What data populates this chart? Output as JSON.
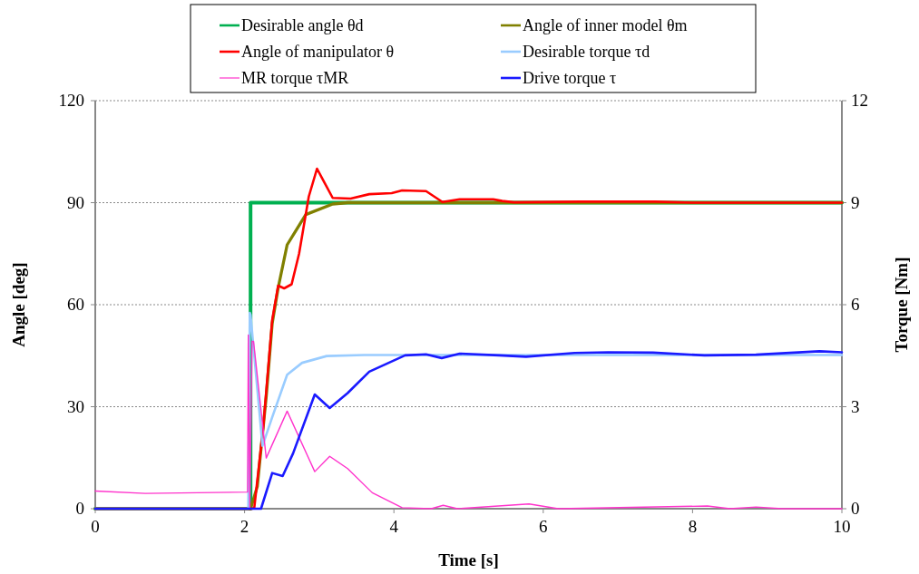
{
  "chart_data": {
    "type": "line",
    "xlabel": "Time [s]",
    "ylabel": "Angle [deg]",
    "y2label": "Torque [Nm]",
    "xlim": [
      0,
      10
    ],
    "xticks": [
      0,
      2,
      4,
      6,
      8,
      10
    ],
    "ylim": [
      0,
      120
    ],
    "yticks": [
      0,
      30,
      60,
      90,
      120
    ],
    "y2lim": [
      0,
      12
    ],
    "y2ticks": [
      0,
      3,
      6,
      9,
      12
    ],
    "grid": "y",
    "legend": "top",
    "line_style": "solid",
    "marker": "none",
    "series": [
      {
        "name": "Desirable angle θd",
        "color": "#00b050",
        "x": [
          0,
          2.08,
          2.08,
          10
        ],
        "values": [
          0,
          0,
          90,
          90
        ]
      },
      {
        "name": "Angle of inner model θm",
        "color": "#808000",
        "x": [
          0,
          2.08,
          2.17,
          2.29,
          2.37,
          2.45,
          2.57,
          2.82,
          3.18,
          3.38,
          10
        ],
        "values": [
          0,
          0,
          6.5,
          33,
          54.5,
          65,
          77.6,
          86.5,
          89.6,
          90,
          90
        ]
      },
      {
        "name": "Angle of manipulator θ",
        "color": "#ff0000",
        "x": [
          0,
          2.1,
          2.13,
          2.25,
          2.37,
          2.45,
          2.53,
          2.63,
          2.73,
          2.86,
          2.97,
          3.06,
          3.18,
          3.42,
          3.67,
          3.97,
          4.11,
          4.43,
          4.65,
          4.88,
          5.33,
          5.45,
          5.61,
          6.5,
          7.5,
          8,
          10
        ],
        "values": [
          0,
          0,
          0.3,
          24,
          55.5,
          65.6,
          64.8,
          66,
          75,
          91.8,
          100,
          96.3,
          91.4,
          91.2,
          92.5,
          92.8,
          93.6,
          93.4,
          90.2,
          91,
          91,
          90.5,
          90.1,
          90.3,
          90.3,
          90,
          90
        ]
      },
      {
        "name": "Desirable torque τd",
        "color": "#99ccff",
        "axis": "y2",
        "x": [
          0,
          2.05,
          2.07,
          2.08,
          2.24,
          2.37,
          2.57,
          2.77,
          3.1,
          3.6,
          10
        ],
        "values": [
          0,
          0,
          5.76,
          5.7,
          1.85,
          2.69,
          3.94,
          4.29,
          4.49,
          4.52,
          4.52
        ]
      },
      {
        "name": "MR torque τMR",
        "color": "#ff33cc",
        "axis": "y2",
        "x": [
          0,
          0.67,
          2.04,
          2.05,
          2.07,
          2.1,
          2.12,
          2.29,
          2.57,
          2.94,
          3.14,
          3.38,
          3.71,
          4.11,
          4.5,
          4.66,
          4.85,
          5.81,
          6.2,
          8.2,
          8.5,
          8.85,
          9.2,
          10
        ],
        "values": [
          0.52,
          0.45,
          0.49,
          5.11,
          0,
          4.92,
          4.92,
          1.49,
          2.87,
          1.09,
          1.54,
          1.18,
          0.47,
          0.03,
          0,
          0.1,
          0,
          0.14,
          0,
          0.08,
          0,
          0.05,
          0,
          0
        ]
      },
      {
        "name": "Drive torque τ",
        "color": "#1a1aff",
        "axis": "y2",
        "x": [
          0,
          2.22,
          2.37,
          2.51,
          2.65,
          2.94,
          3.14,
          3.38,
          3.67,
          4.15,
          4.43,
          4.64,
          4.88,
          5.41,
          5.77,
          6.42,
          6.87,
          7.47,
          8.16,
          8.85,
          9.7,
          10
        ],
        "values": [
          0,
          0,
          1.05,
          0.96,
          1.63,
          3.36,
          2.96,
          3.4,
          4.03,
          4.51,
          4.54,
          4.43,
          4.56,
          4.51,
          4.47,
          4.58,
          4.6,
          4.59,
          4.51,
          4.53,
          4.63,
          4.6
        ]
      }
    ]
  }
}
